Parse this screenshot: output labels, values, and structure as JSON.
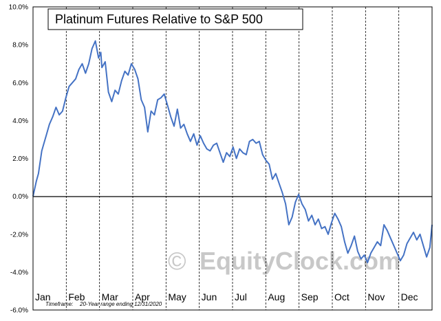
{
  "chart_data": {
    "type": "line",
    "title": "Platinum Futures Relative to S&P 500",
    "xlabel": "",
    "ylabel": "",
    "ylim": [
      -6.0,
      10.0
    ],
    "y_ticks": [
      "10.0%",
      "8.0%",
      "6.0%",
      "4.0%",
      "2.0%",
      "0.0%",
      "-2.0%",
      "-4.0%",
      "-6.0%"
    ],
    "y_tick_values": [
      10,
      8,
      6,
      4,
      2,
      0,
      -2,
      -4,
      -6
    ],
    "x_months": [
      "Jan",
      "Feb",
      "Mar",
      "Apr",
      "May",
      "Jun",
      "Jul",
      "Aug",
      "Sep",
      "Oct",
      "Nov",
      "Dec"
    ],
    "footnote_label": "Timeframe:",
    "footnote_text": "20-Year range ending 12/31/2020",
    "watermark": "EquityClock.com",
    "watermark_symbol": "©",
    "line_color": "#4472c4",
    "grid": "vertical dashed at month boundaries",
    "series": [
      {
        "x_day": [
          0,
          3,
          5,
          8,
          10,
          12,
          15,
          18,
          21,
          24,
          27,
          30,
          33,
          36,
          39,
          42,
          45,
          48,
          51,
          54,
          57,
          60,
          62,
          63,
          66,
          69,
          72,
          75,
          78,
          81,
          84,
          87,
          90,
          93,
          96,
          99,
          102,
          105,
          108,
          111,
          114,
          117,
          120,
          123,
          126,
          129,
          132,
          135,
          138,
          141,
          144,
          147,
          150,
          153,
          156,
          159,
          162,
          165,
          168,
          171,
          174,
          177,
          180,
          183,
          186,
          189,
          192,
          195,
          198,
          201,
          204,
          207,
          210,
          213,
          216,
          219,
          222,
          225,
          228,
          231,
          234,
          237,
          240,
          243,
          246,
          249,
          252,
          255,
          258,
          261,
          264,
          267,
          270,
          273,
          276,
          279,
          282,
          285,
          288,
          291,
          294,
          297,
          300,
          303,
          306,
          309,
          312,
          315,
          318,
          321,
          324,
          327,
          330,
          333,
          336,
          339,
          342,
          345,
          348,
          351,
          354,
          357,
          360,
          363,
          365
        ],
        "values": [
          0.0,
          0.8,
          1.2,
          2.4,
          2.8,
          3.2,
          3.8,
          4.2,
          4.7,
          4.3,
          4.5,
          5.2,
          5.8,
          6.0,
          6.2,
          6.7,
          7.0,
          6.5,
          7.0,
          7.8,
          8.2,
          7.3,
          7.6,
          6.8,
          7.1,
          5.5,
          5.0,
          5.6,
          5.4,
          6.1,
          6.6,
          6.4,
          7.0,
          6.7,
          6.2,
          5.1,
          4.7,
          3.4,
          4.5,
          4.3,
          5.1,
          5.2,
          5.4,
          4.8,
          4.2,
          3.7,
          4.6,
          3.6,
          3.8,
          3.3,
          2.9,
          3.3,
          2.7,
          3.2,
          2.8,
          2.5,
          2.4,
          2.7,
          2.8,
          2.3,
          1.8,
          2.3,
          2.1,
          2.6,
          2.0,
          2.5,
          2.3,
          2.2,
          2.9,
          3.0,
          2.8,
          2.9,
          2.2,
          1.9,
          1.7,
          0.9,
          1.2,
          0.7,
          0.2,
          -0.4,
          -1.5,
          -1.1,
          -0.3,
          0.1,
          -0.4,
          -0.7,
          -1.3,
          -1.0,
          -1.5,
          -1.2,
          -1.7,
          -1.6,
          -2.0,
          -1.4,
          -0.9,
          -1.2,
          -1.6,
          -2.4,
          -3.0,
          -2.6,
          -2.1,
          -2.9,
          -3.3,
          -3.1,
          -3.5,
          -3.0,
          -2.7,
          -2.4,
          -2.6,
          -1.5,
          -1.8,
          -2.2,
          -2.6,
          -3.0,
          -3.4,
          -3.1,
          -2.5,
          -2.2,
          -1.9,
          -2.3,
          -2.0,
          -2.6,
          -3.2,
          -2.7,
          -1.5
        ]
      }
    ]
  }
}
